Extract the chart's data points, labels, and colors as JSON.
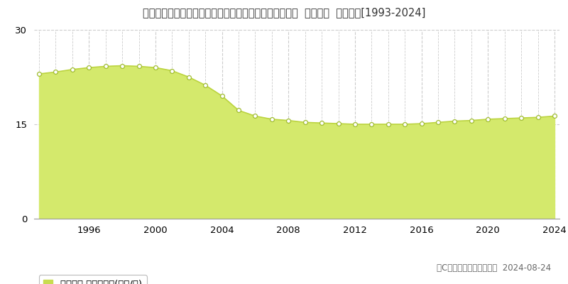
{
  "title": "長野県塩尻市大字広丘高出字下桔梗ケ原２２１３番２２  地価公示  地価推移[1993-2024]",
  "years": [
    1993,
    1994,
    1995,
    1996,
    1997,
    1998,
    1999,
    2000,
    2001,
    2002,
    2003,
    2004,
    2005,
    2006,
    2007,
    2008,
    2009,
    2010,
    2011,
    2012,
    2013,
    2014,
    2015,
    2016,
    2017,
    2018,
    2019,
    2020,
    2021,
    2022,
    2023,
    2024
  ],
  "values": [
    23.0,
    23.3,
    23.7,
    24.0,
    24.2,
    24.3,
    24.2,
    24.0,
    23.5,
    22.5,
    21.2,
    19.5,
    17.2,
    16.3,
    15.8,
    15.6,
    15.3,
    15.2,
    15.1,
    15.0,
    15.0,
    15.0,
    15.0,
    15.1,
    15.3,
    15.5,
    15.6,
    15.8,
    15.9,
    16.0,
    16.1,
    16.3
  ],
  "fill_color": "#d4e96c",
  "line_color": "#bcd440",
  "marker_facecolor": "#ffffff",
  "marker_edgecolor": "#a0bc30",
  "background_color": "#ffffff",
  "plot_bg_color": "#ffffff",
  "grid_color": "#cccccc",
  "ylim": [
    0,
    30
  ],
  "yticks": [
    0,
    15,
    30
  ],
  "xticks": [
    1996,
    2000,
    2004,
    2008,
    2012,
    2016,
    2020,
    2024
  ],
  "legend_label": "地価公示 平均坪単価(万円/坪)",
  "legend_color": "#c8dc50",
  "copyright_text": "（C）土地価格ドットコム  2024-08-24",
  "title_fontsize": 10.5,
  "tick_fontsize": 9.5,
  "legend_fontsize": 9.5,
  "copyright_fontsize": 8.5
}
